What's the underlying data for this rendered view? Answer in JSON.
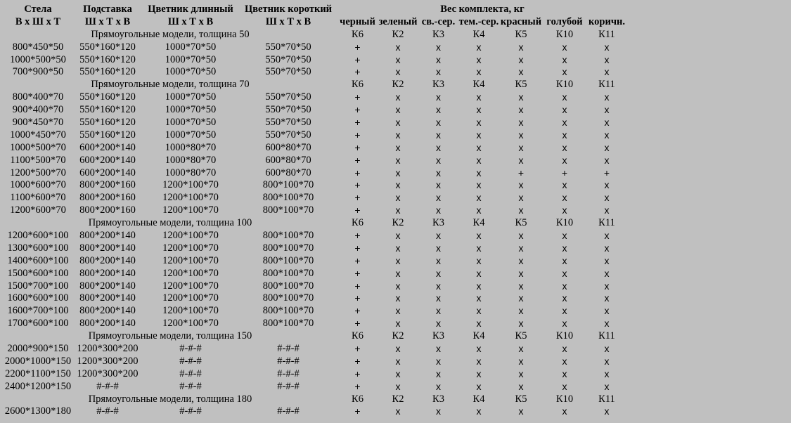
{
  "headers": {
    "stela": "Стела",
    "podstavka": "Подставка",
    "cvetnik_long": "Цветник длинный",
    "cvetnik_short": "Цветник короткий",
    "weight": "Вес комплекта, кг",
    "dims_stela": "В х Ш х Т",
    "dims_podstavka": "Ш х Т х В",
    "dims_long": "Ш х Т х В",
    "dims_short": "Ш х Т х В",
    "colors": [
      "черный",
      "зеленый",
      "св.-сер.",
      "тем.-сер.",
      "красный",
      "голубой",
      "коричн."
    ]
  },
  "codes": [
    "К6",
    "К2",
    "К3",
    "К4",
    "К5",
    "К10",
    "К11"
  ],
  "sections": [
    {
      "title": "Прямоугольные модели, толщина 50",
      "rows": [
        {
          "stela": "800*450*50",
          "podstavka": "550*160*120",
          "long": "1000*70*50",
          "short": "550*70*50",
          "marks": [
            "+",
            "x",
            "x",
            "x",
            "x",
            "x",
            "x"
          ]
        },
        {
          "stela": "1000*500*50",
          "podstavka": "550*160*120",
          "long": "1000*70*50",
          "short": "550*70*50",
          "marks": [
            "+",
            "x",
            "x",
            "x",
            "x",
            "x",
            "x"
          ]
        },
        {
          "stela": "700*900*50",
          "podstavka": "550*160*120",
          "long": "1000*70*50",
          "short": "550*70*50",
          "marks": [
            "+",
            "x",
            "x",
            "x",
            "x",
            "x",
            "x"
          ]
        }
      ]
    },
    {
      "title": "Прямоугольные модели, толщина 70",
      "rows": [
        {
          "stela": "800*400*70",
          "podstavka": "550*160*120",
          "long": "1000*70*50",
          "short": "550*70*50",
          "marks": [
            "+",
            "x",
            "x",
            "x",
            "x",
            "x",
            "x"
          ]
        },
        {
          "stela": "900*400*70",
          "podstavka": "550*160*120",
          "long": "1000*70*50",
          "short": "550*70*50",
          "marks": [
            "+",
            "x",
            "x",
            "x",
            "x",
            "x",
            "x"
          ]
        },
        {
          "stela": "900*450*70",
          "podstavka": "550*160*120",
          "long": "1000*70*50",
          "short": "550*70*50",
          "marks": [
            "+",
            "x",
            "x",
            "x",
            "x",
            "x",
            "x"
          ]
        },
        {
          "stela": "1000*450*70",
          "podstavka": "550*160*120",
          "long": "1000*70*50",
          "short": "550*70*50",
          "marks": [
            "+",
            "x",
            "x",
            "x",
            "x",
            "x",
            "x"
          ]
        },
        {
          "stela": "1000*500*70",
          "podstavka": "600*200*140",
          "long": "1000*80*70",
          "short": "600*80*70",
          "marks": [
            "+",
            "x",
            "x",
            "x",
            "x",
            "x",
            "x"
          ]
        },
        {
          "stela": "1100*500*70",
          "podstavka": "600*200*140",
          "long": "1000*80*70",
          "short": "600*80*70",
          "marks": [
            "+",
            "x",
            "x",
            "x",
            "x",
            "x",
            "x"
          ]
        },
        {
          "stela": "1200*500*70",
          "podstavka": "600*200*140",
          "long": "1000*80*70",
          "short": "600*80*70",
          "marks": [
            "+",
            "x",
            "x",
            "x",
            "+",
            "+",
            "+"
          ]
        },
        {
          "stela": "1000*600*70",
          "podstavka": "800*200*160",
          "long": "1200*100*70",
          "short": "800*100*70",
          "marks": [
            "+",
            "x",
            "x",
            "x",
            "x",
            "x",
            "x"
          ]
        },
        {
          "stela": "1100*600*70",
          "podstavka": "800*200*160",
          "long": "1200*100*70",
          "short": "800*100*70",
          "marks": [
            "+",
            "x",
            "x",
            "x",
            "x",
            "x",
            "x"
          ]
        },
        {
          "stela": "1200*600*70",
          "podstavka": "800*200*160",
          "long": "1200*100*70",
          "short": "800*100*70",
          "marks": [
            "+",
            "x",
            "x",
            "x",
            "x",
            "x",
            "x"
          ]
        }
      ]
    },
    {
      "title": "Прямоугольные модели, толщина 100",
      "rows": [
        {
          "stela": "1200*600*100",
          "podstavka": "800*200*140",
          "long": "1200*100*70",
          "short": "800*100*70",
          "marks": [
            "+",
            "x",
            "x",
            "x",
            "x",
            "x",
            "x"
          ]
        },
        {
          "stela": "1300*600*100",
          "podstavka": "800*200*140",
          "long": "1200*100*70",
          "short": "800*100*70",
          "marks": [
            "+",
            "x",
            "x",
            "x",
            "x",
            "x",
            "x"
          ]
        },
        {
          "stela": "1400*600*100",
          "podstavka": "800*200*140",
          "long": "1200*100*70",
          "short": "800*100*70",
          "marks": [
            "+",
            "x",
            "x",
            "x",
            "x",
            "x",
            "x"
          ]
        },
        {
          "stela": "1500*600*100",
          "podstavka": "800*200*140",
          "long": "1200*100*70",
          "short": "800*100*70",
          "marks": [
            "+",
            "x",
            "x",
            "x",
            "x",
            "x",
            "x"
          ]
        },
        {
          "stela": "1500*700*100",
          "podstavka": "800*200*140",
          "long": "1200*100*70",
          "short": "800*100*70",
          "marks": [
            "+",
            "x",
            "x",
            "x",
            "x",
            "x",
            "x"
          ]
        },
        {
          "stela": "1600*600*100",
          "podstavka": "800*200*140",
          "long": "1200*100*70",
          "short": "800*100*70",
          "marks": [
            "+",
            "x",
            "x",
            "x",
            "x",
            "x",
            "x"
          ]
        },
        {
          "stela": "1600*700*100",
          "podstavka": "800*200*140",
          "long": "1200*100*70",
          "short": "800*100*70",
          "marks": [
            "+",
            "x",
            "x",
            "x",
            "x",
            "x",
            "x"
          ]
        },
        {
          "stela": "1700*600*100",
          "podstavka": "800*200*140",
          "long": "1200*100*70",
          "short": "800*100*70",
          "marks": [
            "+",
            "x",
            "x",
            "x",
            "x",
            "x",
            "x"
          ]
        }
      ]
    },
    {
      "title": "Прямоугольные модели, толщина 150",
      "rows": [
        {
          "stela": "2000*900*150",
          "podstavka": "1200*300*200",
          "long": "#-#-#",
          "short": "#-#-#",
          "marks": [
            "+",
            "x",
            "x",
            "x",
            "x",
            "x",
            "x"
          ]
        },
        {
          "stela": "2000*1000*150",
          "podstavka": "1200*300*200",
          "long": "#-#-#",
          "short": "#-#-#",
          "marks": [
            "+",
            "x",
            "x",
            "x",
            "x",
            "x",
            "x"
          ]
        },
        {
          "stela": "2200*1100*150",
          "podstavka": "1200*300*200",
          "long": "#-#-#",
          "short": "#-#-#",
          "marks": [
            "+",
            "x",
            "x",
            "x",
            "x",
            "x",
            "x"
          ]
        },
        {
          "stela": "2400*1200*150",
          "podstavka": "#-#-#",
          "long": "#-#-#",
          "short": "#-#-#",
          "marks": [
            "+",
            "x",
            "x",
            "x",
            "x",
            "x",
            "x"
          ]
        }
      ]
    },
    {
      "title": "Прямоугольные модели, толщина 180",
      "rows": [
        {
          "stela": "2600*1300*180",
          "podstavka": "#-#-#",
          "long": "#-#-#",
          "short": "#-#-#",
          "marks": [
            "+",
            "x",
            "x",
            "x",
            "x",
            "x",
            "x"
          ]
        }
      ]
    }
  ]
}
